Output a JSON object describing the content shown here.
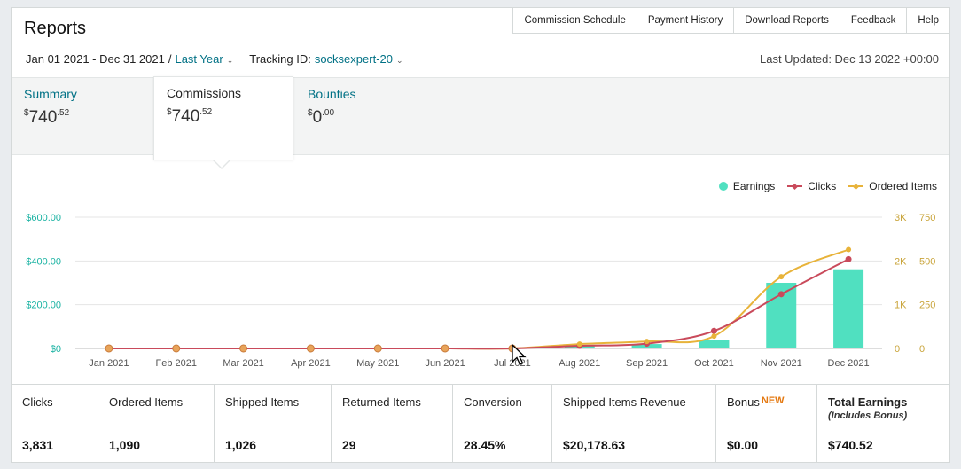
{
  "header": {
    "title": "Reports"
  },
  "topnav": [
    "Commission Schedule",
    "Payment History",
    "Download Reports",
    "Feedback",
    "Help"
  ],
  "filters": {
    "date_range": "Jan 01 2021 - Dec 31 2021",
    "separator": "/",
    "period": "Last Year",
    "tracking_label": "Tracking ID:",
    "tracking_id": "socksexpert-20"
  },
  "last_updated": "Last Updated: Dec 13 2022 +00:00",
  "tabs": [
    {
      "label": "Summary",
      "currency": "$",
      "whole": "740",
      "cents": ".52",
      "active": false
    },
    {
      "label": "Commissions",
      "currency": "$",
      "whole": "740",
      "cents": ".52",
      "active": true
    },
    {
      "label": "Bounties",
      "currency": "$",
      "whole": "0",
      "cents": ".00",
      "active": false
    }
  ],
  "legend": {
    "earnings": "Earnings",
    "clicks": "Clicks",
    "ordered": "Ordered Items"
  },
  "colors": {
    "earnings": "#50e0c0",
    "clicks": "#c94a5b",
    "ordered": "#e8b33a",
    "link": "#007185",
    "axis_left": "#1bb3a3",
    "axis_right": "#c9a43a"
  },
  "chart_data": {
    "type": "bar",
    "categories": [
      "Jan 2021",
      "Feb 2021",
      "Mar 2021",
      "Apr 2021",
      "May 2021",
      "Jun 2021",
      "Jul 2021",
      "Aug 2021",
      "Sep 2021",
      "Oct 2021",
      "Nov 2021",
      "Dec 2021"
    ],
    "series": [
      {
        "name": "Earnings",
        "type": "bar",
        "axis": "left",
        "values": [
          0,
          0,
          0,
          0,
          0,
          0,
          0,
          12,
          20,
          38,
          300,
          362
        ]
      },
      {
        "name": "Clicks",
        "type": "line",
        "axis": "right1",
        "values": [
          0,
          0,
          0,
          0,
          0,
          0,
          0,
          60,
          110,
          400,
          1240,
          2040
        ]
      },
      {
        "name": "Ordered Items",
        "type": "line",
        "axis": "right2",
        "values": [
          0,
          0,
          0,
          0,
          0,
          0,
          0,
          25,
          40,
          70,
          410,
          565
        ]
      }
    ],
    "yleft": {
      "ticks": [
        "$0",
        "$200.00",
        "$400.00",
        "$600.00"
      ],
      "lim": [
        0,
        600
      ]
    },
    "yright1": {
      "ticks": [
        "0",
        "1K",
        "2K",
        "3K"
      ],
      "lim": [
        0,
        3000
      ]
    },
    "yright2": {
      "ticks": [
        "0",
        "250",
        "500",
        "750"
      ],
      "lim": [
        0,
        750
      ]
    },
    "grid": true,
    "legend_position": "top-right"
  },
  "stats": [
    {
      "label": "Clicks",
      "value": "3,831"
    },
    {
      "label": "Ordered Items",
      "value": "1,090"
    },
    {
      "label": "Shipped Items",
      "value": "1,026"
    },
    {
      "label": "Returned Items",
      "value": "29"
    },
    {
      "label": "Conversion",
      "value": "28.45%"
    },
    {
      "label": "Shipped Items Revenue",
      "value": "$20,178.63"
    },
    {
      "label": "Bonus",
      "badge": "NEW",
      "value": "$0.00"
    },
    {
      "label": "Total Earnings",
      "sub": "(Includes Bonus)",
      "value": "$740.52"
    }
  ]
}
